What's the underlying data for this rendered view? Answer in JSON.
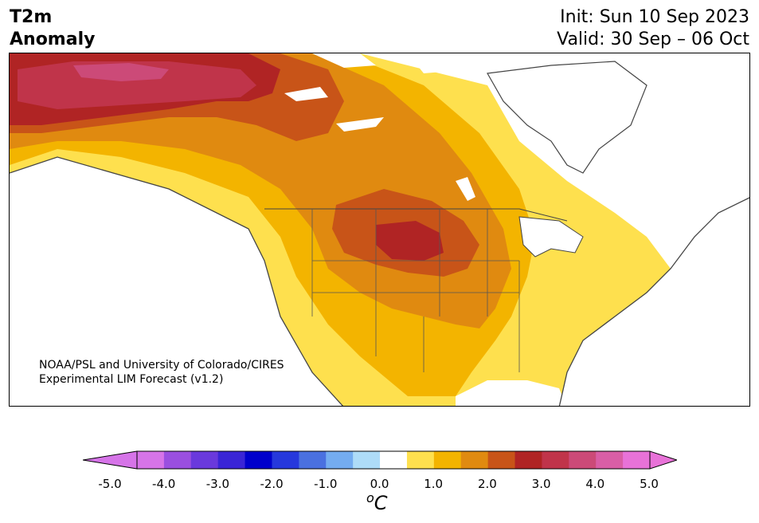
{
  "title": {
    "line1": "T2m",
    "line2": "Anomaly",
    "init": "Init: Sun 10 Sep 2023",
    "valid": "Valid: 30 Sep – 06 Oct"
  },
  "credit": {
    "line1": "NOAA/PSL and University of Colorado/CIRES",
    "line2": "Experimental LIM Forecast (v1.2)"
  },
  "colorbar": {
    "ticks": [
      "-5.0",
      "-4.0",
      "-3.0",
      "-2.0",
      "-1.0",
      "0.0",
      "1.0",
      "2.0",
      "3.0",
      "4.0",
      "5.0"
    ],
    "unit_base": "C",
    "unit_sup": "o",
    "levels": [
      -5.0,
      -4.5,
      -4.0,
      -3.5,
      -3.0,
      -2.5,
      -2.0,
      -1.5,
      -1.0,
      -0.5,
      0.5,
      1.0,
      1.5,
      2.0,
      2.5,
      3.0,
      3.5,
      4.0,
      4.5,
      5.0
    ],
    "colors": [
      "#d674e8",
      "#9a4fe0",
      "#6a39dc",
      "#3a25d6",
      "#0000cc",
      "#2638dc",
      "#4a70e0",
      "#74acf0",
      "#aedcf8",
      "#ffffff",
      "#fee04e",
      "#f3b400",
      "#e08a10",
      "#c85418",
      "#b02424",
      "#c0344a",
      "#cc4a78",
      "#d95ea6",
      "#e872d8"
    ],
    "under_color": "#d674e8",
    "over_color": "#e872d8"
  },
  "map": {
    "region": "North America",
    "fill_colors": {
      "c1": "#fee04e",
      "c2": "#f3b400",
      "c3": "#e08a10",
      "c4": "#c85418",
      "c5": "#b02424",
      "c6": "#c0344a",
      "c7": "#cc4a78",
      "water": "#ffffff",
      "coast": "#444444"
    }
  }
}
